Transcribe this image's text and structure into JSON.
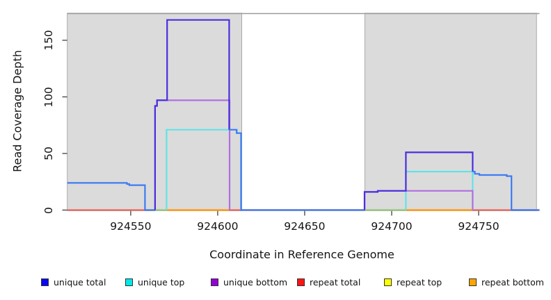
{
  "chart_data": {
    "type": "line",
    "subtype": "step-coverage-plot",
    "title": "",
    "xlabel": "Coordinate in Reference Genome",
    "ylabel": "Read Coverage Depth",
    "xlim": [
      924513.5,
      924785
    ],
    "ylim": [
      0,
      174
    ],
    "grid": false,
    "xticks": [
      {
        "value": 924550,
        "label": "924550"
      },
      {
        "value": 924600,
        "label": "924600"
      },
      {
        "value": 924650,
        "label": "924650"
      },
      {
        "value": 924700,
        "label": "924700"
      },
      {
        "value": 924750,
        "label": "924750"
      }
    ],
    "yticks": [
      {
        "value": 0,
        "label": "0"
      },
      {
        "value": 50,
        "label": "50"
      },
      {
        "value": 100,
        "label": "100"
      },
      {
        "value": 150,
        "label": "150"
      }
    ],
    "shaded_regions": [
      {
        "x0": 924513.5,
        "x1": 924613.8,
        "fill": "#DBDBDB",
        "border": "#ABABAB"
      },
      {
        "x0": 924684.6,
        "x1": 924783.3,
        "fill": "#DBDBDB",
        "border": "#ABABAB"
      }
    ],
    "series": [
      {
        "name": "repeat top",
        "segments": [
          {
            "color": "#FFE000",
            "points": [
              [
                924513.5,
                0
              ],
              [
                924785,
                0
              ]
            ]
          }
        ]
      },
      {
        "name": "repeat total",
        "segments": [
          {
            "color": "#E8636F",
            "points": [
              [
                924513.5,
                0
              ],
              [
                924785,
                0
              ]
            ]
          }
        ]
      },
      {
        "name": "repeat bottom",
        "segments": [
          {
            "color": "#FF9E1B",
            "points": [
              [
                924570.6,
                0
              ],
              [
                924606.5,
                0
              ]
            ]
          },
          {
            "color": "#FF9E1B",
            "points": [
              [
                924708.2,
                0
              ],
              [
                924746.6,
                0
              ]
            ]
          }
        ]
      },
      {
        "name": "unique top",
        "segments": [
          {
            "color": "#8FCE8F",
            "points": [
              [
                924564.0,
                0
              ],
              [
                924570.6,
                0
              ]
            ]
          },
          {
            "color": "#63E3E6",
            "points": [
              [
                924570.6,
                0
              ],
              [
                924570.6,
                71
              ],
              [
                924606.6,
                71
              ],
              [
                924610.9,
                71
              ],
              [
                924610.9,
                68
              ],
              [
                924613.4,
                68
              ],
              [
                924613.4,
                0
              ]
            ]
          },
          {
            "color": "#8FCE8F",
            "points": [
              [
                924684.6,
                0
              ],
              [
                924708.2,
                0
              ]
            ]
          },
          {
            "color": "#63E3E6",
            "points": [
              [
                924708.2,
                0
              ],
              [
                924708.2,
                34
              ],
              [
                924746.6,
                34
              ],
              [
                924746.6,
                0
              ]
            ]
          }
        ]
      },
      {
        "name": "unique bottom",
        "segments": [
          {
            "color": "#B06FE0",
            "points": [
              [
                924564.0,
                0
              ],
              [
                924564.0,
                92
              ],
              [
                924565.1,
                92
              ],
              [
                924565.1,
                97
              ],
              [
                924606.8,
                97
              ],
              [
                924606.8,
                0
              ]
            ]
          },
          {
            "color": "#B06FE0",
            "points": [
              [
                924613.8,
                0
              ],
              [
                924684.4,
                0
              ]
            ]
          },
          {
            "color": "#B06FE0",
            "points": [
              [
                924684.4,
                0
              ],
              [
                924684.4,
                16
              ],
              [
                924692.0,
                16
              ],
              [
                924692.0,
                17
              ],
              [
                924746.6,
                17
              ],
              [
                924746.6,
                0
              ]
            ]
          },
          {
            "color": "#B06FE0",
            "points": [
              [
                924768.9,
                0
              ],
              [
                924785,
                0
              ]
            ]
          }
        ]
      },
      {
        "name": "unique total",
        "segments": [
          {
            "color": "#3E7BF2",
            "points": [
              [
                924513.5,
                24
              ],
              [
                924547.8,
                24
              ],
              [
                924547.8,
                23
              ],
              [
                924549.2,
                23
              ],
              [
                924549.2,
                22
              ],
              [
                924558.2,
                22
              ],
              [
                924558.2,
                0
              ],
              [
                924564.0,
                0
              ]
            ]
          },
          {
            "color": "#4B2EDE",
            "points": [
              [
                924564.0,
                0
              ],
              [
                924564.0,
                92
              ],
              [
                924565.1,
                92
              ],
              [
                924565.1,
                97
              ],
              [
                924570.9,
                97
              ],
              [
                924570.9,
                168
              ],
              [
                924606.6,
                168
              ],
              [
                924606.6,
                71
              ]
            ]
          },
          {
            "color": "#3E7BF2",
            "points": [
              [
                924606.6,
                71
              ],
              [
                924610.9,
                71
              ],
              [
                924610.9,
                68
              ],
              [
                924613.4,
                68
              ],
              [
                924613.4,
                0
              ],
              [
                924684.4,
                0
              ]
            ]
          },
          {
            "color": "#4B2EDE",
            "points": [
              [
                924684.4,
                0
              ],
              [
                924684.4,
                16
              ],
              [
                924692.0,
                16
              ],
              [
                924692.0,
                17
              ],
              [
                924708.2,
                17
              ],
              [
                924708.2,
                51
              ],
              [
                924746.6,
                51
              ],
              [
                924746.6,
                34
              ]
            ]
          },
          {
            "color": "#3E7BF2",
            "points": [
              [
                924746.6,
                34
              ],
              [
                924747.8,
                34
              ],
              [
                924747.8,
                32
              ],
              [
                924750.4,
                32
              ],
              [
                924750.4,
                31
              ],
              [
                924766.2,
                31
              ],
              [
                924766.2,
                30
              ],
              [
                924768.9,
                30
              ],
              [
                924768.9,
                0
              ],
              [
                924785,
                0
              ]
            ]
          }
        ]
      }
    ],
    "legend": [
      {
        "label": "unique total",
        "color": "#0808F0"
      },
      {
        "label": "unique top",
        "color": "#00E8E8"
      },
      {
        "label": "unique bottom",
        "color": "#9400D3"
      },
      {
        "label": "repeat total",
        "color": "#FF1414"
      },
      {
        "label": "repeat top",
        "color": "#FFFF00"
      },
      {
        "label": "repeat bottom",
        "color": "#FFA500"
      }
    ],
    "legend_position": "bottom"
  }
}
